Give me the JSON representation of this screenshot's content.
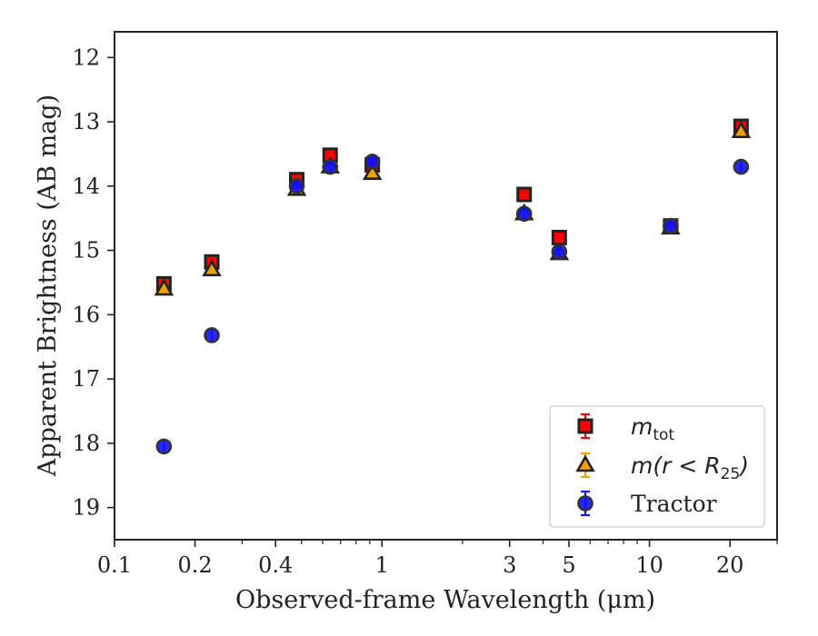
{
  "chart_data": {
    "type": "scatter",
    "xscale": "log",
    "xlim": [
      0.1,
      30
    ],
    "ylim": [
      19.5,
      11.6
    ],
    "yinverted": true,
    "xlabel": "Observed-frame Wavelength (μm)",
    "ylabel": "Apparent Brightness (AB mag)",
    "xticks": [
      {
        "value": 0.1,
        "label": "0.1"
      },
      {
        "value": 0.2,
        "label": "0.2"
      },
      {
        "value": 0.4,
        "label": "0.4"
      },
      {
        "value": 1,
        "label": "1"
      },
      {
        "value": 3,
        "label": "3"
      },
      {
        "value": 5,
        "label": "5"
      },
      {
        "value": 10,
        "label": "10"
      },
      {
        "value": 20,
        "label": "20"
      }
    ],
    "xminorticks": [
      0.3,
      0.5,
      0.6,
      0.7,
      0.8,
      0.9,
      2,
      4,
      6,
      7,
      8,
      9,
      30
    ],
    "yticks": [
      {
        "value": 12,
        "label": "12"
      },
      {
        "value": 13,
        "label": "13"
      },
      {
        "value": 14,
        "label": "14"
      },
      {
        "value": 15,
        "label": "15"
      },
      {
        "value": 16,
        "label": "16"
      },
      {
        "value": 17,
        "label": "17"
      },
      {
        "value": 18,
        "label": "18"
      },
      {
        "value": 19,
        "label": "19"
      }
    ],
    "grid": false,
    "legend_position": "lower-right",
    "series": [
      {
        "name": "m_tot",
        "legend": {
          "base": "m",
          "sub": "tot"
        },
        "marker": "square",
        "color": "#ff0000",
        "errcolor": "#ff0000",
        "edgecolor": "#222222",
        "points": [
          {
            "x": 0.153,
            "y": 15.52
          },
          {
            "x": 0.231,
            "y": 15.18
          },
          {
            "x": 0.48,
            "y": 13.9
          },
          {
            "x": 0.64,
            "y": 13.52
          },
          {
            "x": 0.92,
            "y": 13.67
          },
          {
            "x": 3.4,
            "y": 14.13
          },
          {
            "x": 4.6,
            "y": 14.8
          },
          {
            "x": 12.0,
            "y": 14.62
          },
          {
            "x": 22.0,
            "y": 13.07
          }
        ]
      },
      {
        "name": "m(r < R_25)",
        "legend": {
          "base": "m(r < R",
          "sub": "25",
          "tail": ")"
        },
        "marker": "triangle",
        "color": "#f0a000",
        "errcolor": "#f0a000",
        "edgecolor": "#222222",
        "points": [
          {
            "x": 0.153,
            "y": 15.6
          },
          {
            "x": 0.231,
            "y": 15.3
          },
          {
            "x": 0.48,
            "y": 14.05
          },
          {
            "x": 0.64,
            "y": 13.7
          },
          {
            "x": 0.92,
            "y": 13.8
          },
          {
            "x": 3.4,
            "y": 14.43
          },
          {
            "x": 4.6,
            "y": 15.05
          },
          {
            "x": 12.0,
            "y": 14.65
          },
          {
            "x": 22.0,
            "y": 13.15
          }
        ]
      },
      {
        "name": "Tractor",
        "legend": {
          "base": "Tractor"
        },
        "marker": "circle",
        "color": "#1010ff",
        "errcolor": "#1010ff",
        "edgecolor": "#333333",
        "points": [
          {
            "x": 0.153,
            "y": 18.05
          },
          {
            "x": 0.231,
            "y": 16.32
          },
          {
            "x": 0.48,
            "y": 14.0
          },
          {
            "x": 0.64,
            "y": 13.7
          },
          {
            "x": 0.92,
            "y": 13.62
          },
          {
            "x": 3.4,
            "y": 14.43
          },
          {
            "x": 4.6,
            "y": 15.02
          },
          {
            "x": 12.0,
            "y": 14.62
          },
          {
            "x": 22.0,
            "y": 13.7
          }
        ]
      }
    ]
  }
}
